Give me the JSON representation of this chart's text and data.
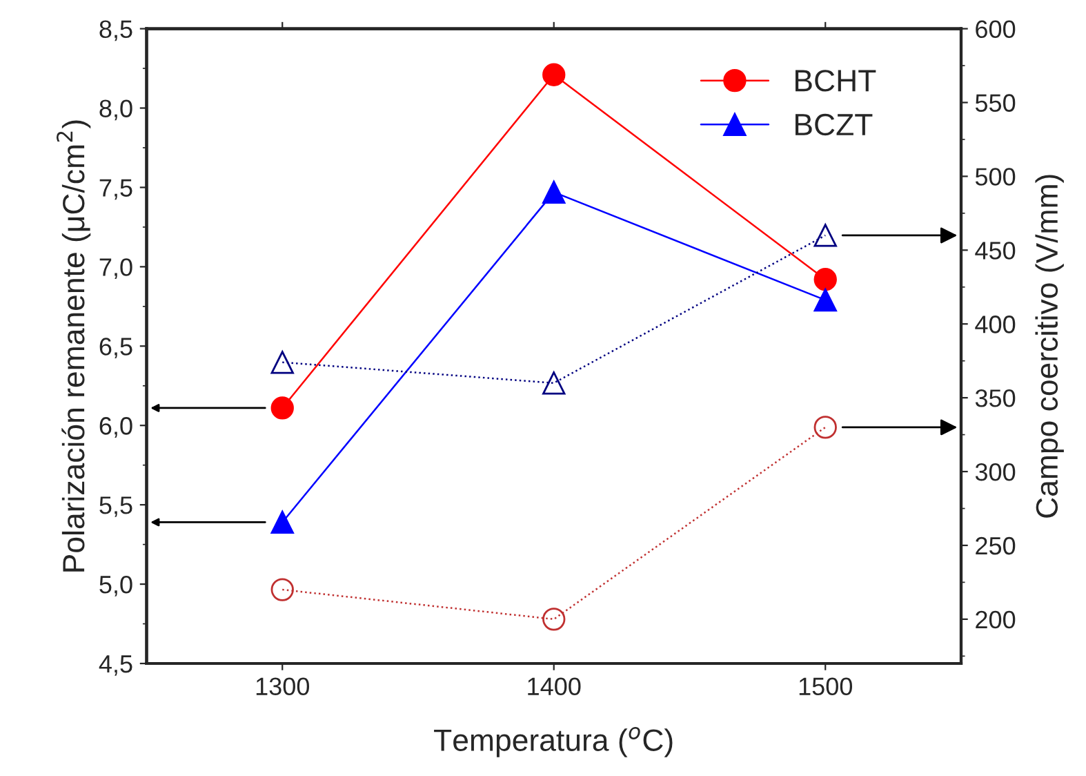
{
  "chart_data": {
    "type": "line",
    "xlabel": "Temperatura ($^{o}$C)",
    "ylabel": "Polarización remanente (μC/cm$^{2}$)",
    "y2label": "Campo coercitivo (V/mm)",
    "x": [
      1300,
      1400,
      1500
    ],
    "xlim": [
      1250,
      1550
    ],
    "xticks": [
      1300,
      1400,
      1500
    ],
    "ylim": [
      4.5,
      8.5
    ],
    "yticks": [
      {
        "value": 4.5,
        "label": "4,5"
      },
      {
        "value": 5.0,
        "label": "5,0"
      },
      {
        "value": 5.5,
        "label": "5,5"
      },
      {
        "value": 6.0,
        "label": "6,0"
      },
      {
        "value": 6.5,
        "label": "6,5"
      },
      {
        "value": 7.0,
        "label": "7,0"
      },
      {
        "value": 7.5,
        "label": "7,5"
      },
      {
        "value": 8.0,
        "label": "8,0"
      },
      {
        "value": 8.5,
        "label": "8,5"
      }
    ],
    "y2lim": [
      170,
      600
    ],
    "y2ticks": [
      200,
      250,
      300,
      350,
      400,
      450,
      500,
      550,
      600
    ],
    "legend": "top right",
    "grid": false,
    "series": [
      {
        "name": "BCHT",
        "color": "#ff0000",
        "values": [
          6.11,
          8.21,
          6.92
        ],
        "marker": "circle",
        "line_style": "solid"
      },
      {
        "name": "BCZT",
        "color": "#0000ff",
        "values": [
          5.39,
          7.47,
          6.79
        ],
        "marker": "triangle",
        "line_style": "solid"
      },
      {
        "color": "#c03030",
        "values": [
          220,
          200,
          330
        ],
        "axis": "y2",
        "marker": "circle",
        "line_style": "dotted"
      },
      {
        "color": "#000080",
        "values": [
          374,
          360,
          460
        ],
        "axis": "y2",
        "marker": "triangle",
        "line_style": "dotted"
      }
    ]
  }
}
